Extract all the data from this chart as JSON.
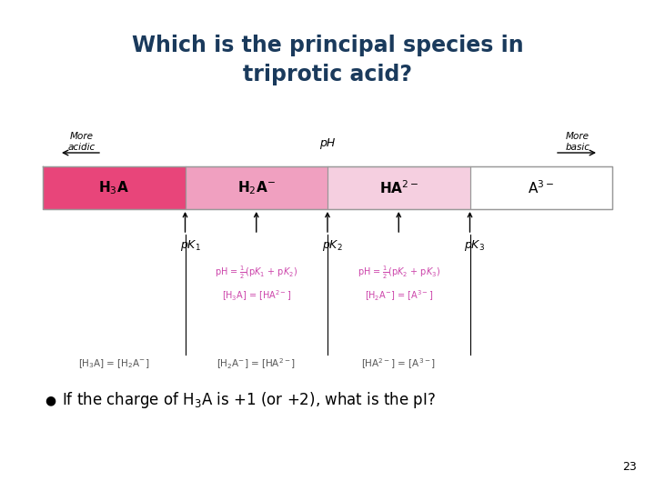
{
  "title_line1": "Which is the principal species in",
  "title_line2": "triprotic acid?",
  "title_color": "#1a3a5c",
  "bg_color": "#ffffff",
  "bar_colors": [
    "#e8457a",
    "#f0a0c0",
    "#f5cfe0",
    "#ffffff"
  ],
  "bar_labels": [
    "H$_3$A",
    "H$_2$A$^{-}$",
    "HA$^{2-}$",
    "A$^{3-}$"
  ],
  "bullet_text": "If the charge of H$_3$A is +1 (or +2), what is the pI?",
  "page_number": "23",
  "formula_color": "#cc44aa",
  "border_color": "#999999"
}
